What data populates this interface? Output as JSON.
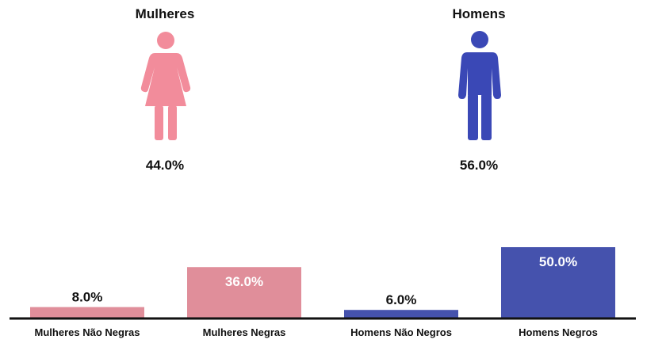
{
  "groups": [
    {
      "label": "Mulheres",
      "percent": "44.0%",
      "color": "#f28c9b",
      "icon": "woman-icon"
    },
    {
      "label": "Homens",
      "percent": "56.0%",
      "color": "#3a48b6",
      "icon": "man-icon"
    }
  ],
  "chart_data": {
    "type": "bar",
    "categories": [
      "Mulheres Não Negras",
      "Mulheres Negras",
      "Homens Não Negros",
      "Homens Negros"
    ],
    "values": [
      8.0,
      36.0,
      6.0,
      50.0
    ],
    "value_labels": [
      "8.0%",
      "36.0%",
      "6.0%",
      "50.0%"
    ],
    "colors": [
      "#e08e9a",
      "#e08e9a",
      "#4552ad",
      "#4552ad"
    ],
    "title": "",
    "xlabel": "",
    "ylabel": "",
    "ylim": [
      0,
      50
    ],
    "grid": false
  }
}
